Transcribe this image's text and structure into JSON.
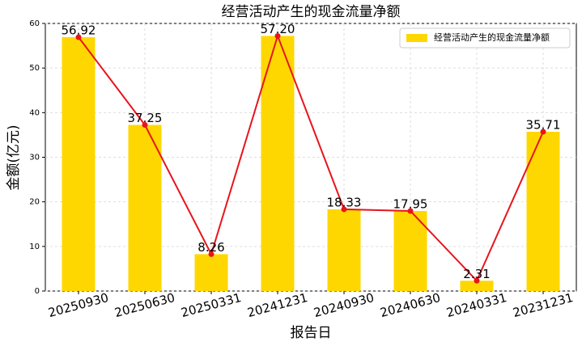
{
  "chart_data": {
    "type": "bar",
    "title": "经营活动产生的现金流量净额",
    "x_label": "报告日",
    "y_label": "金额(亿元)",
    "categories": [
      "20250930",
      "20250630",
      "20250331",
      "20241231",
      "20240930",
      "20240630",
      "20240331",
      "20231231"
    ],
    "series": [
      {
        "name": "经营活动产生的现金流量净额",
        "color": "#ffd700",
        "line_color": "#e8141c",
        "values": [
          56.92,
          37.25,
          8.26,
          57.2,
          18.33,
          17.95,
          2.31,
          35.71
        ],
        "value_labels": [
          "56.92",
          "37.25",
          "8.26",
          "57.20",
          "18.33",
          "17.95",
          "2.31",
          "35.71"
        ]
      }
    ],
    "ylim": [
      0,
      60
    ],
    "yticks": [
      0,
      10,
      20,
      30,
      40,
      50,
      60
    ],
    "grid": true,
    "legend": "upper right"
  }
}
